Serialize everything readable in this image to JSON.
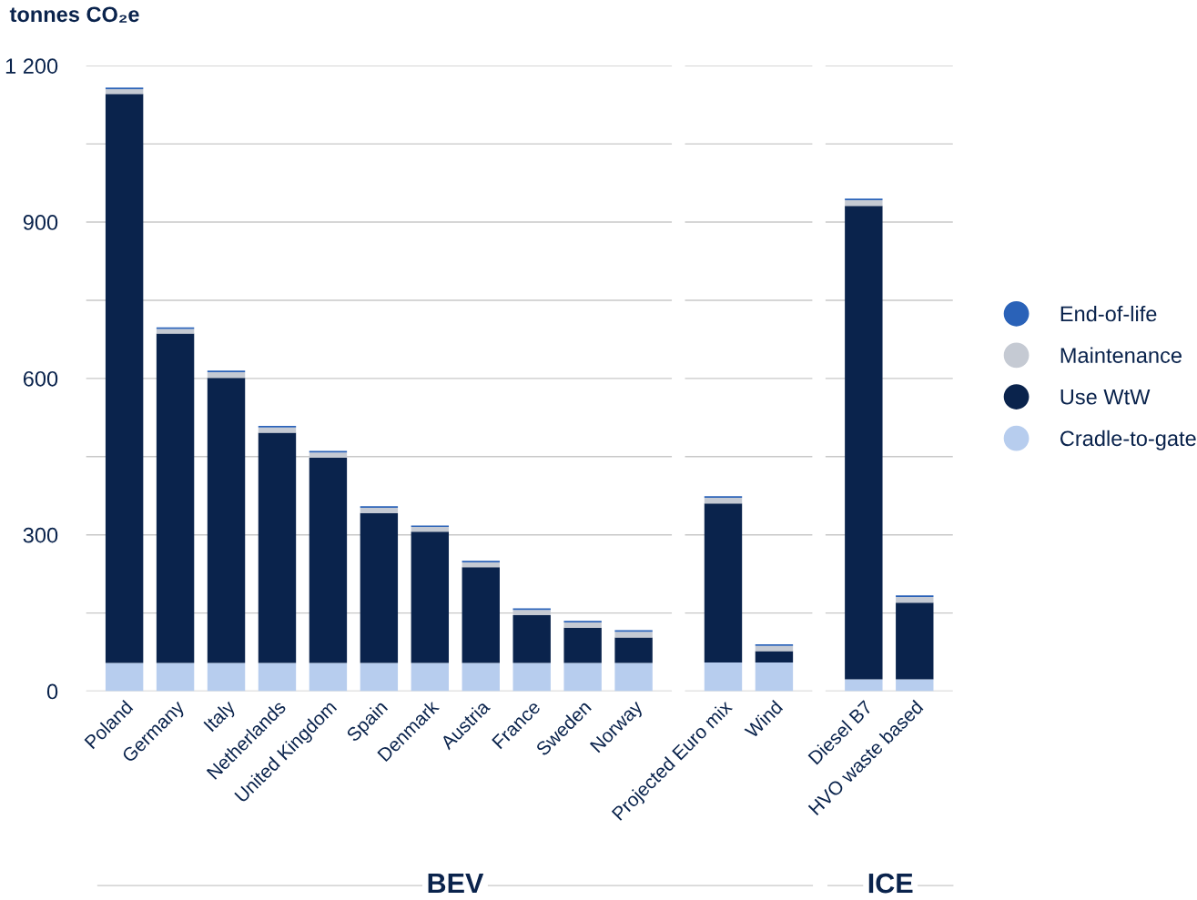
{
  "chart_data": [
    {
      "type": "bar",
      "stacked": true,
      "ylabel": "tonnes CO₂e",
      "xlabel": "BEV",
      "categories": [
        "Poland",
        "Germany",
        "Italy",
        "Netherlands",
        "United Kingdom",
        "Spain",
        "Denmark",
        "Austria",
        "France",
        "Sweden",
        "Norway"
      ],
      "series": [
        {
          "name": "Cradle-to-gate",
          "color": "#b7cdee",
          "values": [
            54,
            54,
            54,
            54,
            54,
            54,
            54,
            54,
            54,
            54,
            54
          ]
        },
        {
          "name": "Use WtW",
          "color": "#0a234c",
          "values": [
            1092,
            632,
            547,
            442,
            394,
            288,
            252,
            184,
            92,
            68,
            49
          ]
        },
        {
          "name": "Maintenance",
          "color": "#c5cad3",
          "values": [
            9,
            9,
            11,
            10,
            10,
            10,
            9,
            9,
            10,
            10,
            11
          ]
        },
        {
          "name": "End-of-life",
          "color": "#2a62b8",
          "values": [
            3,
            3,
            3,
            3,
            3,
            3,
            3,
            3,
            3,
            3,
            3
          ]
        }
      ],
      "ylim": [
        0,
        1200
      ],
      "yticks": [
        0,
        {
          "value": 150,
          "label": null
        },
        300,
        {
          "value": 450,
          "label": null
        },
        600,
        {
          "value": 750,
          "label": null
        },
        900,
        {
          "value": 1050,
          "label": null
        },
        {
          "value": 1200,
          "label": "1 200"
        }
      ],
      "grid": "y",
      "legend": "right"
    },
    {
      "type": "bar",
      "stacked": true,
      "categories": [
        "Projected Euro mix",
        "Wind"
      ],
      "series": [
        {
          "color": "#b7cdee",
          "values": [
            55,
            55
          ]
        },
        {
          "color": "#0a234c",
          "values": [
            305,
            22
          ]
        },
        {
          "color": "#c5cad3",
          "values": [
            11,
            10
          ]
        },
        {
          "color": "#2a62b8",
          "values": [
            3,
            3
          ]
        }
      ],
      "ylim": [
        0,
        1200
      ],
      "yticks": [
        {
          "value": 0,
          "label": null
        },
        {
          "value": 150,
          "label": null
        },
        {
          "value": 300,
          "label": null
        },
        {
          "value": 450,
          "label": null
        },
        {
          "value": 600,
          "label": null
        },
        {
          "value": 750,
          "label": null
        },
        {
          "value": 900,
          "label": null
        },
        {
          "value": 1050,
          "label": null
        },
        {
          "value": 1200,
          "label": null
        }
      ],
      "grid": "y",
      "tick_labels": "x"
    },
    {
      "type": "bar",
      "stacked": true,
      "xlabel": "ICE",
      "categories": [
        "Diesel B7",
        "HVO waste based"
      ],
      "series": [
        {
          "color": "#b7cdee",
          "values": [
            23,
            23
          ]
        },
        {
          "color": "#0a234c",
          "values": [
            908,
            147
          ]
        },
        {
          "color": "#c5cad3",
          "values": [
            11,
            11
          ]
        },
        {
          "color": "#2a62b8",
          "values": [
            3,
            3
          ]
        }
      ],
      "ylim": [
        0,
        1200
      ],
      "yticks": [
        {
          "value": 0,
          "label": null
        },
        {
          "value": 150,
          "label": null
        },
        {
          "value": 300,
          "label": null
        },
        {
          "value": 450,
          "label": null
        },
        {
          "value": 600,
          "label": null
        },
        {
          "value": 750,
          "label": null
        },
        {
          "value": 900,
          "label": null
        },
        {
          "value": 1050,
          "label": null
        },
        {
          "value": 1200,
          "label": null
        }
      ],
      "grid": "y",
      "tick_labels": "x"
    }
  ]
}
